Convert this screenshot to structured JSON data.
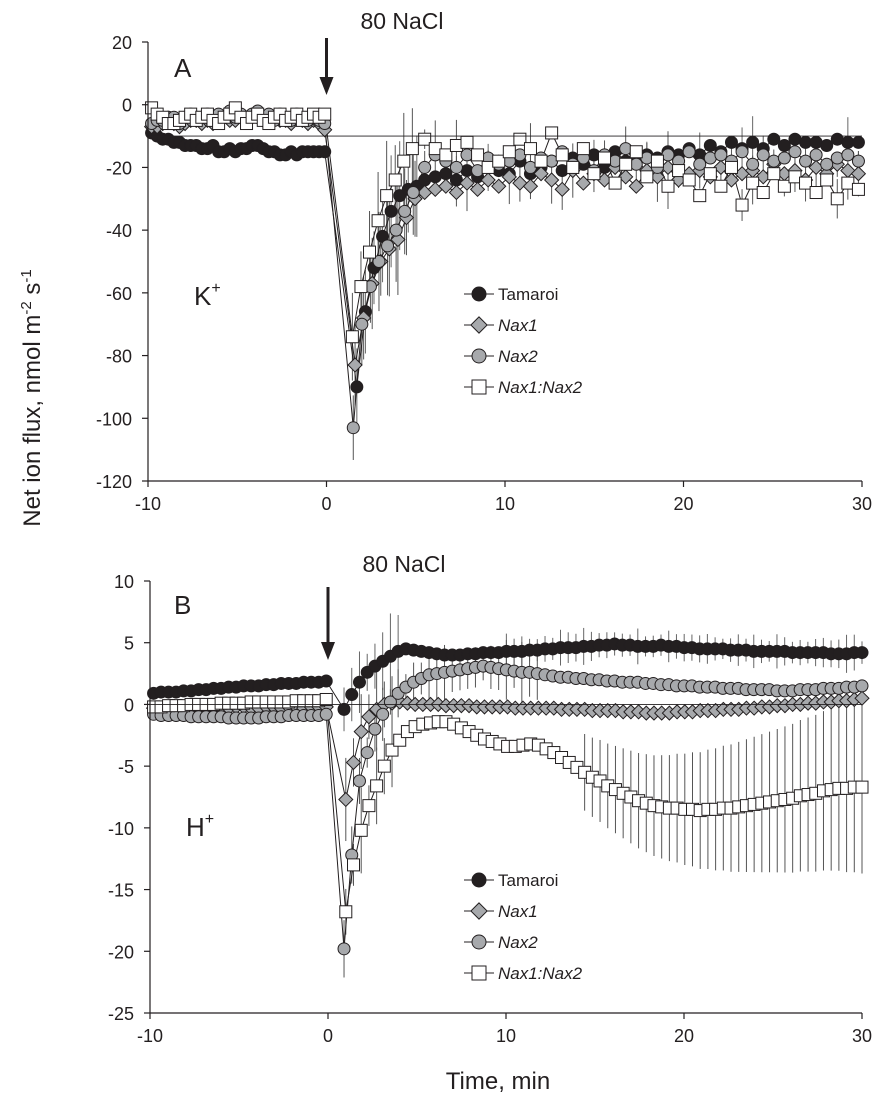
{
  "figure": {
    "ylabel": "Net ion flux, nmol m",
    "ylabel_sup1": "-2",
    "ylabel_mid": " s",
    "ylabel_sup2": "-1",
    "xlabel": "Time, min"
  },
  "chart_data": [
    {
      "type": "scatter",
      "panel": "A",
      "ion_label": "K",
      "ion_sup": "+",
      "treatment_label": "80 NaCl",
      "xlim": [
        -10,
        30
      ],
      "ylim": [
        -120,
        20
      ],
      "xticks": [
        "-10",
        "0",
        "10",
        "20",
        "30"
      ],
      "yticks": [
        "20",
        "0",
        "-20",
        "-40",
        "-60",
        "-80",
        "-100",
        "-120"
      ],
      "reference_line_y": -10,
      "arrow_at_x": 0,
      "legend_placement": "center-right",
      "series": [
        {
          "name": "Tamaroi",
          "marker": "circle",
          "fill": "#231f20",
          "pre": [
            -9,
            -10,
            -11,
            -11,
            -12,
            -12,
            -13,
            -13,
            -13,
            -14,
            -14,
            -13,
            -15,
            -15,
            -14,
            -15,
            -14,
            -14,
            -13,
            -13,
            -14,
            -15,
            -15,
            -16,
            -16,
            -15,
            -16,
            -15,
            -15,
            -15,
            -15,
            -15
          ],
          "recovery": [
            -90,
            -66,
            -52,
            -42,
            -34,
            -29,
            -27,
            -26
          ],
          "post": [
            -24,
            -23,
            -22,
            -24,
            -21,
            -23,
            -20,
            -21,
            -22,
            -18,
            -22,
            -20,
            -18,
            -21,
            -17,
            -19,
            -16,
            -20,
            -15,
            -18,
            -17,
            -16,
            -17,
            -15,
            -16,
            -14,
            -16,
            -13,
            -15,
            -12,
            -14,
            -12,
            -14,
            -11,
            -13,
            -11,
            -12,
            -12,
            -13,
            -11,
            -12,
            -12
          ]
        },
        {
          "name": "Nax1",
          "marker": "diamond",
          "fill": "#a7a9ac",
          "pre": [
            -7,
            -7,
            -6,
            -5,
            -6,
            -7,
            -6,
            -5,
            -5,
            -6,
            -5,
            -6,
            -5,
            -4,
            -5,
            -5,
            -4,
            -5,
            -4,
            -4,
            -5,
            -5,
            -4,
            -5,
            -5,
            -6,
            -4,
            -5,
            -6,
            -5,
            -6,
            -8
          ],
          "recovery": [
            -83,
            -68,
            -57,
            -50,
            -46,
            -43,
            -36,
            -30
          ],
          "post": [
            -28,
            -27,
            -26,
            -28,
            -25,
            -27,
            -24,
            -26,
            -23,
            -25,
            -26,
            -22,
            -24,
            -27,
            -21,
            -25,
            -22,
            -24,
            -20,
            -23,
            -26,
            -21,
            -23,
            -20,
            -24,
            -22,
            -21,
            -23,
            -20,
            -24,
            -22,
            -21,
            -23,
            -19,
            -22,
            -21,
            -24,
            -20,
            -22,
            -19,
            -21,
            -22
          ]
        },
        {
          "name": "Nax2",
          "marker": "circle",
          "fill": "#a7a9ac",
          "pre": [
            -6,
            -5,
            -5,
            -4,
            -4,
            -6,
            -4,
            -3,
            -4,
            -4,
            -3,
            -5,
            -3,
            -4,
            -2,
            -4,
            -3,
            -5,
            -3,
            -2,
            -4,
            -3,
            -5,
            -3,
            -4,
            -5,
            -3,
            -4,
            -5,
            -4,
            -5,
            -6
          ],
          "recovery": [
            -103,
            -70,
            -58,
            -50,
            -45,
            -40,
            -34,
            -28
          ],
          "post": [
            -20,
            -16,
            -18,
            -20,
            -16,
            -21,
            -17,
            -19,
            -18,
            -16,
            -20,
            -17,
            -18,
            -15,
            -19,
            -17,
            -21,
            -16,
            -18,
            -14,
            -19,
            -17,
            -20,
            -16,
            -18,
            -15,
            -19,
            -17,
            -16,
            -18,
            -15,
            -19,
            -16,
            -18,
            -17,
            -15,
            -18,
            -16,
            -19,
            -17,
            -16,
            -18
          ]
        },
        {
          "name": "Nax1:Nax2",
          "marker": "square",
          "fill": "#ffffff",
          "pre": [
            -1,
            -3,
            -4,
            -6,
            -6,
            -5,
            -4,
            -3,
            -5,
            -4,
            -3,
            -5,
            -6,
            -4,
            -3,
            -1,
            -4,
            -6,
            -4,
            -3,
            -5,
            -6,
            -4,
            -3,
            -5,
            -4,
            -3,
            -5,
            -4,
            -3,
            -4,
            -3
          ],
          "recovery": [
            -74,
            -58,
            -47,
            -37,
            -29,
            -24,
            -18,
            -14
          ],
          "post": [
            -11,
            -14,
            -16,
            -13,
            -12,
            -16,
            -20,
            -18,
            -15,
            -11,
            -14,
            -18,
            -9,
            -16,
            -20,
            -14,
            -22,
            -17,
            -25,
            -19,
            -15,
            -23,
            -18,
            -26,
            -21,
            -24,
            -29,
            -22,
            -26,
            -20,
            -32,
            -25,
            -28,
            -22,
            -26,
            -23,
            -25,
            -28,
            -24,
            -30,
            -25,
            -27
          ]
        }
      ]
    },
    {
      "type": "scatter",
      "panel": "B",
      "ion_label": "H",
      "ion_sup": "+",
      "treatment_label": "80 NaCl",
      "xlim": [
        -10,
        30
      ],
      "ylim": [
        -25,
        10
      ],
      "xticks": [
        "-10",
        "0",
        "10",
        "20",
        "30"
      ],
      "yticks": [
        "10",
        "5",
        "0",
        "-5",
        "-10",
        "-15",
        "-20",
        "-25"
      ],
      "reference_line_y": 0,
      "arrow_at_x": 0,
      "legend_placement": "bottom-center",
      "series": [
        {
          "name": "Tamaroi",
          "marker": "circle",
          "fill": "#231f20",
          "pre": [
            0.9,
            1.0,
            1.0,
            1.0,
            1.1,
            1.1,
            1.2,
            1.2,
            1.3,
            1.3,
            1.4,
            1.4,
            1.5,
            1.5,
            1.5,
            1.6,
            1.6,
            1.7,
            1.7,
            1.7,
            1.8,
            1.8,
            1.8,
            1.9
          ],
          "post": [
            -0.4,
            0.8,
            1.8,
            2.6,
            3.1,
            3.5,
            3.9,
            4.3,
            4.5,
            4.4,
            4.3,
            4.2,
            4.1,
            4.0,
            4.0,
            4.0,
            4.1,
            4.1,
            4.2,
            4.2,
            4.2,
            4.3,
            4.3,
            4.3,
            4.4,
            4.4,
            4.5,
            4.5,
            4.6,
            4.6,
            4.6,
            4.7,
            4.7,
            4.8,
            4.8,
            4.9,
            4.8,
            4.8,
            4.7,
            4.7,
            4.7,
            4.8,
            4.7,
            4.7,
            4.6,
            4.6,
            4.5,
            4.5,
            4.5,
            4.5,
            4.4,
            4.4,
            4.4,
            4.3,
            4.3,
            4.3,
            4.3,
            4.3,
            4.2,
            4.2,
            4.2,
            4.2,
            4.2,
            4.1,
            4.1,
            4.1,
            4.2,
            4.2
          ]
        },
        {
          "name": "Nax1",
          "marker": "diamond",
          "fill": "#a7a9ac",
          "pre": [
            -0.3,
            -0.3,
            -0.2,
            -0.3,
            -0.3,
            -0.2,
            -0.3,
            -0.3,
            -0.2,
            -0.3,
            -0.3,
            -0.2,
            -0.2,
            -0.3,
            -0.3,
            -0.2,
            -0.2,
            -0.3,
            -0.2,
            -0.2,
            -0.3,
            -0.2,
            -0.2,
            -0.2
          ],
          "post": [
            -7.7,
            -4.7,
            -2.2,
            -1.0,
            -0.4,
            0.0,
            0.1,
            0.2,
            0.1,
            0.0,
            0.0,
            0.0,
            0.0,
            -0.1,
            -0.1,
            -0.1,
            -0.1,
            -0.2,
            -0.2,
            -0.2,
            -0.2,
            -0.2,
            -0.3,
            -0.3,
            -0.3,
            -0.3,
            -0.3,
            -0.3,
            -0.4,
            -0.4,
            -0.4,
            -0.4,
            -0.5,
            -0.5,
            -0.5,
            -0.5,
            -0.6,
            -0.6,
            -0.6,
            -0.7,
            -0.7,
            -0.7,
            -0.7,
            -0.6,
            -0.6,
            -0.6,
            -0.5,
            -0.5,
            -0.5,
            -0.4,
            -0.4,
            -0.4,
            -0.3,
            -0.3,
            -0.2,
            -0.2,
            -0.1,
            -0.1,
            0.0,
            0.0,
            0.1,
            0.1,
            0.2,
            0.2,
            0.3,
            0.3,
            0.4,
            0.5
          ]
        },
        {
          "name": "Nax2",
          "marker": "circle",
          "fill": "#a7a9ac",
          "pre": [
            -0.8,
            -0.9,
            -0.9,
            -0.9,
            -0.9,
            -1.0,
            -1.0,
            -1.0,
            -1.0,
            -1.0,
            -1.1,
            -1.1,
            -1.1,
            -1.1,
            -1.1,
            -1.0,
            -1.0,
            -1.0,
            -0.9,
            -0.9,
            -0.9,
            -0.9,
            -0.9,
            -0.8
          ],
          "post": [
            -19.8,
            -12.2,
            -6.2,
            -3.9,
            -2.0,
            -0.8,
            0.2,
            0.9,
            1.4,
            1.8,
            2.1,
            2.4,
            2.5,
            2.6,
            2.7,
            2.8,
            2.9,
            3.0,
            3.1,
            3.0,
            2.9,
            2.8,
            2.7,
            2.6,
            2.6,
            2.5,
            2.4,
            2.3,
            2.2,
            2.2,
            2.1,
            2.1,
            2.0,
            2.0,
            1.9,
            1.9,
            1.8,
            1.8,
            1.8,
            1.7,
            1.7,
            1.6,
            1.6,
            1.5,
            1.5,
            1.5,
            1.4,
            1.4,
            1.4,
            1.3,
            1.3,
            1.3,
            1.2,
            1.2,
            1.2,
            1.2,
            1.1,
            1.1,
            1.1,
            1.2,
            1.2,
            1.2,
            1.3,
            1.3,
            1.3,
            1.4,
            1.4,
            1.5
          ]
        },
        {
          "name": "Nax1:Nax2",
          "marker": "square",
          "fill": "#ffffff",
          "pre": [
            -0.2,
            -0.2,
            -0.1,
            -0.1,
            -0.1,
            0.0,
            0.0,
            0.0,
            0.0,
            0.1,
            0.1,
            0.1,
            0.1,
            0.2,
            0.2,
            0.2,
            0.2,
            0.2,
            0.2,
            0.3,
            0.3,
            0.3,
            0.3,
            0.4
          ],
          "post": [
            -16.8,
            -13.0,
            -10.2,
            -8.2,
            -6.6,
            -5.0,
            -3.7,
            -2.9,
            -2.2,
            -1.8,
            -1.6,
            -1.5,
            -1.4,
            -1.4,
            -1.6,
            -1.9,
            -2.2,
            -2.5,
            -2.8,
            -3.0,
            -3.2,
            -3.4,
            -3.4,
            -3.3,
            -3.2,
            -3.3,
            -3.6,
            -3.9,
            -4.3,
            -4.7,
            -5.1,
            -5.5,
            -5.9,
            -6.2,
            -6.6,
            -6.9,
            -7.2,
            -7.5,
            -7.8,
            -8.0,
            -8.2,
            -8.3,
            -8.4,
            -8.4,
            -8.5,
            -8.5,
            -8.6,
            -8.5,
            -8.5,
            -8.4,
            -8.4,
            -8.3,
            -8.2,
            -8.1,
            -8.0,
            -7.9,
            -7.8,
            -7.7,
            -7.6,
            -7.4,
            -7.3,
            -7.2,
            -7.0,
            -6.9,
            -6.8,
            -6.8,
            -6.7,
            -6.7
          ]
        }
      ]
    }
  ]
}
